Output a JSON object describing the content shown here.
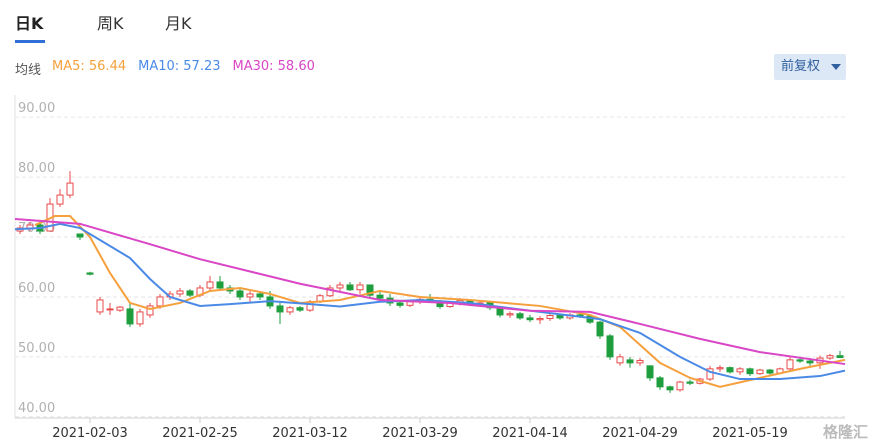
{
  "tabs": [
    {
      "label": "日K",
      "selected": true
    },
    {
      "label": "周K"
    },
    {
      "label": "月K"
    }
  ],
  "indicator_label": "均线",
  "adjust_button": "前复权",
  "watermark": "格隆汇",
  "chart_data": {
    "type": "candlestick",
    "categories": [
      null,
      null,
      null,
      null,
      null,
      null,
      null,
      "2021-02-03",
      null,
      null,
      null,
      null,
      null,
      null,
      null,
      null,
      null,
      null,
      "2021-02-25",
      null,
      null,
      null,
      null,
      null,
      null,
      null,
      null,
      null,
      null,
      "2021-03-12",
      null,
      null,
      null,
      null,
      null,
      null,
      null,
      null,
      null,
      null,
      "2021-03-29",
      null,
      null,
      null,
      null,
      null,
      null,
      null,
      null,
      null,
      null,
      "2021-04-14",
      null,
      null,
      null,
      null,
      null,
      null,
      null,
      null,
      null,
      null,
      "2021-04-29",
      null,
      null,
      null,
      null,
      null,
      null,
      null,
      null,
      null,
      null,
      "2021-05-19",
      null,
      null,
      null,
      null,
      null,
      null,
      null,
      null,
      null
    ],
    "candles": [
      [
        71,
        72,
        70.5,
        71.5
      ],
      [
        71.5,
        72.5,
        71,
        72
      ],
      [
        72,
        72.5,
        70.5,
        71
      ],
      [
        71,
        76.5,
        71,
        75.5
      ],
      [
        75.5,
        78,
        75,
        77
      ],
      [
        77,
        81,
        76.5,
        79
      ],
      [
        70.5,
        70.5,
        69.5,
        70
      ],
      [
        64,
        64.2,
        63.6,
        63.8
      ],
      [
        57.5,
        60,
        57,
        59.5
      ],
      [
        58,
        59,
        57,
        58
      ],
      [
        57.8,
        58.5,
        57.5,
        58.3
      ],
      [
        58,
        59,
        55,
        55.5
      ],
      [
        55.5,
        58,
        55,
        57.5
      ],
      [
        57,
        59,
        56.5,
        58.5
      ],
      [
        58.5,
        60.5,
        58,
        60
      ],
      [
        60,
        61,
        59.5,
        60.5
      ],
      [
        60.5,
        61.5,
        60,
        61
      ],
      [
        61,
        61.3,
        60,
        60.3
      ],
      [
        60.3,
        62,
        60,
        61.5
      ],
      [
        61.5,
        63.5,
        61,
        62.5
      ],
      [
        62.5,
        63.5,
        61,
        61.5
      ],
      [
        61.5,
        62,
        60.5,
        61
      ],
      [
        61,
        61.5,
        59.5,
        60
      ],
      [
        60,
        61,
        59,
        60.5
      ],
      [
        60.5,
        61,
        59.5,
        60
      ],
      [
        60,
        61,
        58,
        58.5
      ],
      [
        58.5,
        59,
        55.5,
        57.5
      ],
      [
        57.5,
        58.5,
        57,
        58.2
      ],
      [
        58.2,
        58.5,
        57.5,
        57.8
      ],
      [
        57.8,
        59.5,
        57.5,
        59.2
      ],
      [
        59.2,
        60.5,
        59,
        60.2
      ],
      [
        60.2,
        62,
        60,
        61.5
      ],
      [
        61.5,
        62.5,
        61,
        62
      ],
      [
        62,
        62.5,
        61,
        61.2
      ],
      [
        61.2,
        62.5,
        60.5,
        62
      ],
      [
        62,
        62,
        60,
        60.3
      ],
      [
        60.3,
        61,
        59.5,
        59.8
      ],
      [
        59.8,
        60.5,
        58.5,
        59
      ],
      [
        59,
        59.5,
        58.2,
        58.6
      ],
      [
        58.6,
        59.5,
        58.3,
        59.2
      ],
      [
        59.2,
        60,
        58.8,
        59.6
      ],
      [
        59.6,
        60.5,
        59,
        59.3
      ],
      [
        59.3,
        59.5,
        58,
        58.4
      ],
      [
        58.4,
        59.2,
        58.2,
        59
      ],
      [
        59,
        59.8,
        58.6,
        59.4
      ],
      [
        59.4,
        59.6,
        58.5,
        58.8
      ],
      [
        58.8,
        59.3,
        58.4,
        59
      ],
      [
        59,
        59.2,
        57.8,
        58.2
      ],
      [
        58.2,
        58.4,
        56.6,
        57
      ],
      [
        57,
        57.6,
        56.5,
        57.2
      ],
      [
        57.2,
        57.5,
        56.2,
        56.5
      ],
      [
        56.5,
        57,
        55.8,
        56.2
      ],
      [
        56.2,
        56.8,
        55.5,
        56.4
      ],
      [
        56.4,
        57.2,
        56,
        56.9
      ],
      [
        56.9,
        57.2,
        56.2,
        56.5
      ],
      [
        56.5,
        57.3,
        56.2,
        57
      ],
      [
        57,
        57.5,
        56.5,
        56.8
      ],
      [
        56.8,
        57,
        55.5,
        55.8
      ],
      [
        55.8,
        56,
        53,
        53.5
      ],
      [
        53.5,
        53.8,
        49.5,
        50
      ],
      [
        49,
        50.5,
        48.5,
        50
      ],
      [
        49.5,
        50,
        48.2,
        49
      ],
      [
        49,
        49.8,
        48.5,
        49.4
      ],
      [
        48.5,
        48.6,
        46,
        46.5
      ],
      [
        46.5,
        46.8,
        44.5,
        45
      ],
      [
        45,
        45.2,
        44,
        44.5
      ],
      [
        44.5,
        46,
        44.2,
        45.8
      ],
      [
        45.8,
        46.2,
        45.3,
        45.6
      ],
      [
        45.6,
        46.5,
        45.4,
        46.3
      ],
      [
        46.3,
        48.5,
        46,
        48
      ],
      [
        48,
        48.6,
        47.5,
        48.2
      ],
      [
        48.2,
        48.4,
        47.2,
        47.5
      ],
      [
        47.5,
        48.3,
        47,
        48
      ],
      [
        48,
        48.2,
        46.8,
        47.2
      ],
      [
        47.2,
        48,
        47,
        47.8
      ],
      [
        47.8,
        48,
        47,
        47.3
      ],
      [
        47.3,
        48.2,
        47.2,
        48
      ],
      [
        48,
        50,
        47.6,
        49.5
      ],
      [
        49.5,
        50,
        49,
        49.3
      ],
      [
        49.3,
        49.8,
        48.5,
        49
      ],
      [
        49,
        50.2,
        48,
        49.8
      ],
      [
        49.8,
        50.5,
        49.5,
        50.2
      ],
      [
        50.2,
        51,
        49.8,
        49.9
      ]
    ],
    "up_color": "#e84a4a",
    "down_color": "#1e9e3c",
    "ylim": [
      39.8,
      93.7
    ],
    "yticks": [
      {
        "value": 40,
        "label": "40.00"
      },
      {
        "value": 50,
        "label": "50.00"
      },
      {
        "value": 60,
        "label": "60.00"
      },
      {
        "value": 70,
        "label": "70.00"
      },
      {
        "value": 80,
        "label": "80.00"
      },
      {
        "value": 90,
        "label": "90.00"
      }
    ],
    "grid": true,
    "ma": [
      {
        "label": "MA5: 56.44",
        "color": "#f5a03c",
        "x": [
          1.5,
          3.5,
          5,
          7,
          9,
          11,
          13,
          16,
          19,
          22,
          25,
          28,
          32,
          36,
          40,
          45,
          52,
          57,
          60,
          62,
          64,
          67,
          70,
          74,
          78,
          82.5
        ],
        "values": [
          72,
          73.5,
          73.5,
          70,
          64,
          59,
          58,
          59,
          61,
          61.5,
          60.5,
          59,
          59.5,
          61,
          60,
          59.5,
          58.5,
          57,
          55,
          52,
          49,
          46.5,
          45,
          46.5,
          48,
          49.5
        ]
      },
      {
        "label": "MA10: 57.23",
        "color": "#4a8ae6",
        "x": [
          -0.5,
          2,
          4,
          6,
          8,
          11,
          13,
          15,
          18,
          21,
          25,
          29,
          32,
          36,
          40,
          45,
          52,
          58,
          62,
          64,
          66,
          69,
          72,
          76,
          80,
          82.5
        ],
        "values": [
          71.3,
          71.5,
          72.2,
          71.5,
          69.5,
          66.5,
          63,
          60,
          58.5,
          58.8,
          59.3,
          58.8,
          58.4,
          59.2,
          59.5,
          59,
          57.5,
          56.3,
          54,
          52,
          50,
          47.5,
          46.3,
          46.3,
          46.8,
          47.7
        ]
      },
      {
        "label": "MA30: 58.60",
        "color": "#d946c6",
        "x": [
          -0.5,
          6,
          13,
          18,
          28,
          36,
          43,
          51,
          57,
          62,
          68,
          74,
          82.5
        ],
        "values": [
          73,
          72.2,
          68.8,
          66.3,
          62.2,
          59.5,
          59,
          57.7,
          57.5,
          55.5,
          53,
          50.8,
          48.8
        ]
      }
    ]
  }
}
